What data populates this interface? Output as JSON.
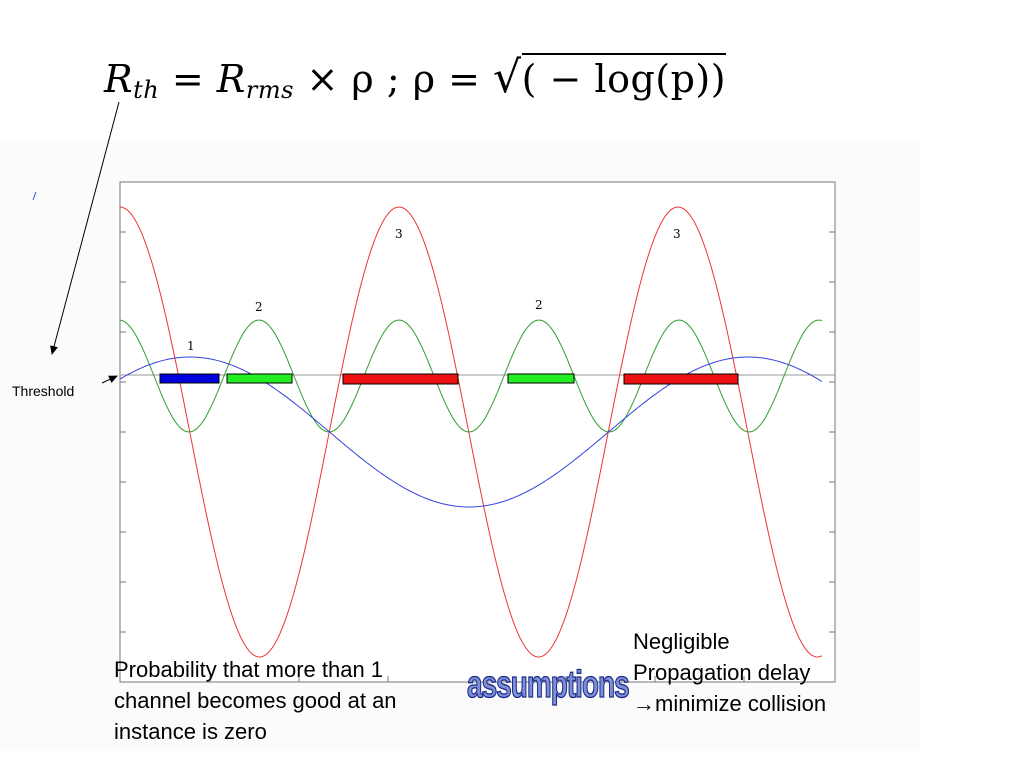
{
  "formula": {
    "lhs": "R",
    "lhs_sub": "th",
    "eq1": " = ",
    "rhs": "R",
    "rhs_sub": "rms",
    "times": " × ρ ; ρ = ",
    "radical": "√",
    "radicand": "( − log(p))"
  },
  "threshold_label": "Threshold",
  "curve_labels": [
    "1",
    "2",
    "2",
    "3",
    "3"
  ],
  "left_caption": "Probability that more than 1 channel becomes good at an instance is zero",
  "right_caption_line1": "Negligible",
  "right_caption_line2": "Propagation delay",
  "right_caption_line3": "→minimize collision",
  "assumptions_label": "assumptions",
  "colors": {
    "channel1": "#3344dd",
    "channel2": "#2e9e2e",
    "channel3": "#ee3333",
    "bar1": "#0000dd",
    "bar2": "#22ee22",
    "bar3": "#ee1111"
  }
}
